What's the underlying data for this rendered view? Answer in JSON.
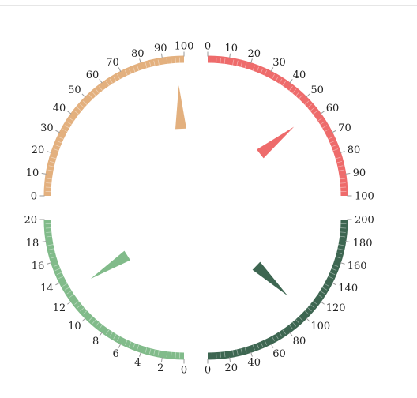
{
  "chart_data": {
    "type": "gauge",
    "gauges": [
      {
        "name": "top-right",
        "color": "#ee6b6b",
        "min": 0,
        "max": 100,
        "tick_step": 10,
        "value": 57,
        "tick_labels": [
          "0",
          "10",
          "20",
          "30",
          "40",
          "50",
          "60",
          "70",
          "80",
          "90",
          "100"
        ]
      },
      {
        "name": "top-left",
        "color": "#e3b07e",
        "min": 0,
        "max": 100,
        "tick_step": 10,
        "value": 97,
        "tick_labels": [
          "0",
          "10",
          "20",
          "30",
          "40",
          "50",
          "60",
          "70",
          "80",
          "90",
          "100"
        ]
      },
      {
        "name": "bottom-left",
        "color": "#81bb8a",
        "min": 0,
        "max": 20,
        "tick_step": 2,
        "value": 12.8,
        "tick_labels": [
          "0",
          "2",
          "4",
          "6",
          "8",
          "10",
          "12",
          "14",
          "16",
          "18",
          "20"
        ]
      },
      {
        "name": "bottom-right",
        "color": "#3d6651",
        "min": 0,
        "max": 200,
        "tick_step": 20,
        "value": 103,
        "tick_labels": [
          "0",
          "20",
          "40",
          "60",
          "80",
          "100",
          "120",
          "140",
          "160",
          "180",
          "200"
        ]
      }
    ]
  }
}
